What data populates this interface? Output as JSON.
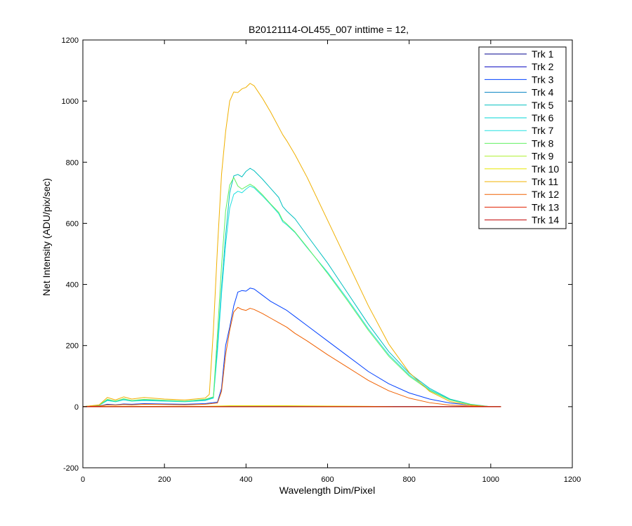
{
  "chart_data": {
    "type": "line",
    "title": "B20121114-OL455_007 inttime = 12,",
    "xlabel": "Wavelength Dim/Pixel",
    "ylabel": "Net Intensity (ADU/pix/sec)",
    "xlim": [
      0,
      1200
    ],
    "ylim": [
      -200,
      1200
    ],
    "xticks": [
      0,
      200,
      400,
      600,
      800,
      1000,
      1200
    ],
    "yticks": [
      -200,
      0,
      200,
      400,
      600,
      800,
      1000,
      1200
    ],
    "grid": false,
    "legend_position": "top-right",
    "series": [
      {
        "name": "Trk 1",
        "color": "#00008F",
        "x": [
          0,
          1025
        ],
        "y": [
          0,
          0
        ]
      },
      {
        "name": "Trk 2",
        "color": "#0000BF",
        "x": [
          0,
          1025
        ],
        "y": [
          0,
          0
        ]
      },
      {
        "name": "Trk 3",
        "color": "#0040FF",
        "x": [
          0,
          40,
          60,
          80,
          100,
          120,
          150,
          200,
          250,
          300,
          330,
          340,
          350,
          360,
          370,
          380,
          390,
          400,
          410,
          420,
          440,
          460,
          480,
          500,
          520,
          550,
          600,
          650,
          700,
          750,
          800,
          850,
          900,
          950,
          980,
          1000,
          1025
        ],
        "y": [
          0,
          2,
          8,
          6,
          9,
          8,
          10,
          9,
          8,
          10,
          15,
          60,
          200,
          260,
          330,
          375,
          380,
          378,
          388,
          385,
          365,
          345,
          330,
          315,
          295,
          265,
          215,
          165,
          115,
          75,
          45,
          25,
          12,
          5,
          2,
          0,
          0
        ]
      },
      {
        "name": "Trk 4",
        "color": "#0080C0",
        "x": [
          0,
          1025
        ],
        "y": [
          0,
          0
        ]
      },
      {
        "name": "Trk 5",
        "color": "#00BFBF",
        "x": [
          0,
          40,
          60,
          80,
          100,
          120,
          150,
          200,
          250,
          300,
          320,
          330,
          340,
          350,
          360,
          370,
          380,
          390,
          400,
          410,
          420,
          440,
          460,
          480,
          490,
          500,
          520,
          550,
          600,
          650,
          700,
          750,
          800,
          850,
          900,
          950,
          980,
          1000,
          1025
        ],
        "y": [
          0,
          5,
          22,
          18,
          25,
          20,
          22,
          20,
          18,
          22,
          30,
          200,
          390,
          560,
          700,
          755,
          760,
          752,
          770,
          780,
          772,
          745,
          715,
          685,
          655,
          640,
          615,
          560,
          470,
          370,
          270,
          180,
          110,
          60,
          25,
          8,
          3,
          0,
          0
        ]
      },
      {
        "name": "Trk 6",
        "color": "#00D4D4",
        "x": [
          0,
          1025
        ],
        "y": [
          0,
          0
        ]
      },
      {
        "name": "Trk 7",
        "color": "#20E0E0",
        "x": [
          0,
          40,
          60,
          80,
          100,
          120,
          150,
          200,
          250,
          300,
          320,
          330,
          340,
          350,
          360,
          370,
          380,
          390,
          400,
          410,
          420,
          440,
          460,
          480,
          490,
          500,
          520,
          550,
          600,
          650,
          700,
          750,
          800,
          850,
          900,
          950,
          980,
          1000,
          1025
        ],
        "y": [
          0,
          4,
          20,
          16,
          22,
          18,
          20,
          18,
          16,
          20,
          28,
          180,
          370,
          530,
          650,
          695,
          705,
          700,
          712,
          722,
          716,
          690,
          662,
          632,
          605,
          595,
          570,
          520,
          440,
          350,
          255,
          170,
          104,
          56,
          23,
          7,
          2,
          0,
          0
        ]
      },
      {
        "name": "Trk 8",
        "color": "#60F060",
        "x": [
          0,
          40,
          60,
          80,
          100,
          120,
          150,
          200,
          250,
          300,
          320,
          330,
          340,
          350,
          360,
          370,
          380,
          390,
          400,
          410,
          420,
          440,
          460,
          480,
          490,
          500,
          520,
          550,
          600,
          650,
          700,
          750,
          800,
          850,
          900,
          950,
          980,
          1000,
          1025
        ],
        "y": [
          0,
          5,
          24,
          18,
          26,
          20,
          24,
          21,
          18,
          24,
          32,
          240,
          460,
          640,
          725,
          750,
          722,
          712,
          720,
          728,
          720,
          694,
          664,
          636,
          610,
          598,
          572,
          522,
          436,
          345,
          250,
          165,
          100,
          53,
          22,
          7,
          2,
          0,
          0
        ]
      },
      {
        "name": "Trk 9",
        "color": "#B0F030",
        "x": [
          0,
          1025
        ],
        "y": [
          0,
          0
        ]
      },
      {
        "name": "Trk 10",
        "color": "#E8E800",
        "x": [
          0,
          50,
          300,
          330,
          360,
          400,
          500,
          600,
          700,
          760
        ],
        "y": [
          0,
          1,
          1,
          2,
          3,
          3,
          3,
          2,
          1,
          0
        ]
      },
      {
        "name": "Trk 11",
        "color": "#F0B000",
        "x": [
          0,
          40,
          60,
          80,
          100,
          120,
          150,
          200,
          250,
          300,
          310,
          320,
          330,
          340,
          350,
          360,
          370,
          380,
          390,
          400,
          410,
          420,
          440,
          460,
          480,
          490,
          500,
          520,
          550,
          600,
          650,
          700,
          750,
          800,
          850,
          900,
          950,
          980,
          1000,
          1025
        ],
        "y": [
          0,
          6,
          30,
          22,
          32,
          25,
          30,
          25,
          22,
          28,
          40,
          250,
          520,
          760,
          900,
          1000,
          1030,
          1028,
          1040,
          1045,
          1058,
          1050,
          1010,
          965,
          915,
          890,
          870,
          825,
          750,
          610,
          470,
          330,
          205,
          112,
          50,
          17,
          5,
          2,
          0,
          0
        ]
      },
      {
        "name": "Trk 12",
        "color": "#F06000",
        "x": [
          0,
          40,
          60,
          80,
          100,
          120,
          150,
          200,
          250,
          300,
          330,
          340,
          350,
          360,
          370,
          380,
          390,
          400,
          410,
          420,
          440,
          460,
          480,
          500,
          520,
          550,
          600,
          650,
          700,
          750,
          800,
          850,
          900,
          950,
          980,
          1000,
          1025
        ],
        "y": [
          0,
          2,
          6,
          5,
          7,
          6,
          8,
          7,
          6,
          8,
          12,
          50,
          170,
          250,
          310,
          325,
          318,
          315,
          322,
          318,
          305,
          290,
          275,
          260,
          240,
          215,
          170,
          128,
          86,
          52,
          28,
          13,
          5,
          2,
          1,
          0,
          0
        ]
      },
      {
        "name": "Trk 13",
        "color": "#E02000",
        "x": [
          0,
          1025
        ],
        "y": [
          0,
          0
        ]
      },
      {
        "name": "Trk 14",
        "color": "#C00000",
        "x": [
          0,
          1025
        ],
        "y": [
          0,
          0
        ]
      }
    ]
  }
}
